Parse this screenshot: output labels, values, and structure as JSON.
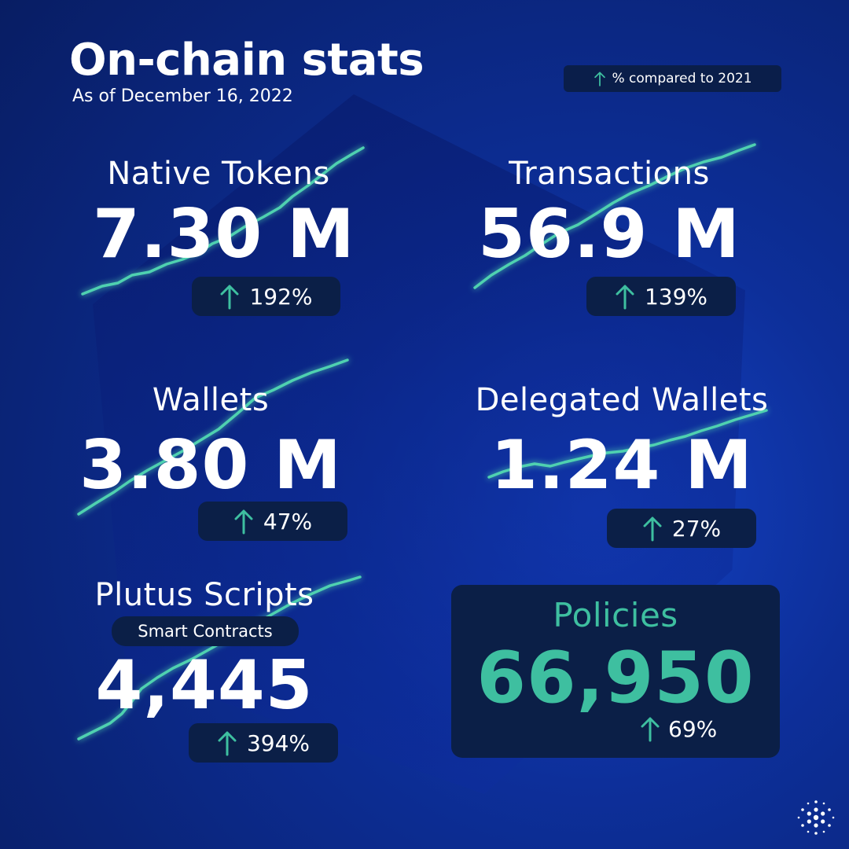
{
  "header": {
    "title": "On-chain stats",
    "subtitle": "As of December 16, 2022",
    "legend_text": "% compared to 2021"
  },
  "stats": {
    "native_tokens": {
      "label": "Native Tokens",
      "value": "7.30 M",
      "change": "192%"
    },
    "transactions": {
      "label": "Transactions",
      "value": "56.9 M",
      "change": "139%"
    },
    "wallets": {
      "label": "Wallets",
      "value": "3.80 M",
      "change": "47%"
    },
    "delegated_wallets": {
      "label": "Delegated Wallets",
      "value": "1.24 M",
      "change": "27%"
    },
    "plutus_scripts": {
      "label": "Plutus Scripts",
      "sublabel": "Smart Contracts",
      "value": "4,445",
      "change": "394%"
    },
    "policies": {
      "label": "Policies",
      "value": "66,950",
      "change": "69%"
    }
  },
  "icons": {
    "change": "arrow-up-icon",
    "logo": "cardano-logo-icon"
  },
  "colors": {
    "background": "#0b2a82",
    "accent": "#3ebfa0",
    "panel": "#0b1f47",
    "text": "#ffffff"
  }
}
